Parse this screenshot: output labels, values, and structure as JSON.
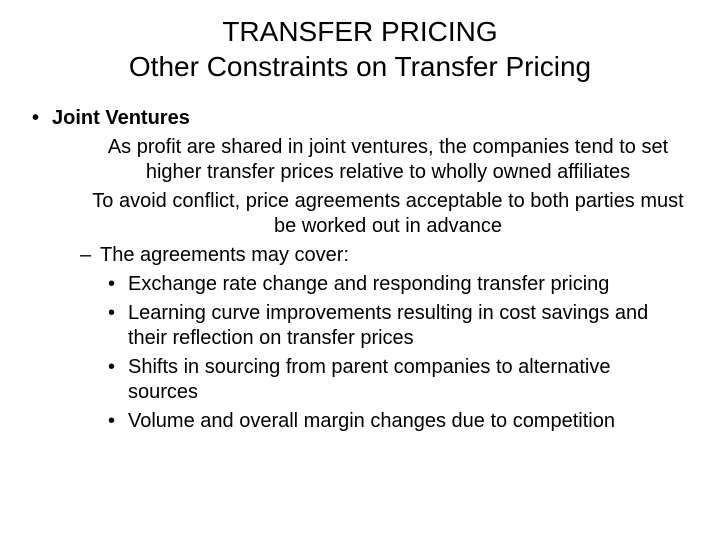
{
  "title_line1": "TRANSFER PRICING",
  "title_line2": "Other Constraints on Transfer Pricing",
  "b1": "Joint Ventures",
  "b1_sub1": "As profit are shared in joint ventures, the companies tend to set higher transfer prices relative to wholly owned affiliates",
  "b1_sub2": "To avoid conflict, price agreements acceptable to both parties must be worked out in advance",
  "b1_sub3": "The agreements may cover:",
  "b1_sub3_a": "Exchange rate change and responding transfer pricing",
  "b1_sub3_b": "Learning curve improvements resulting in cost savings and their reflection on transfer prices",
  "b1_sub3_c": "Shifts in sourcing from parent companies to alternative sources",
  "b1_sub3_d": "Volume and overall margin changes due to competition"
}
